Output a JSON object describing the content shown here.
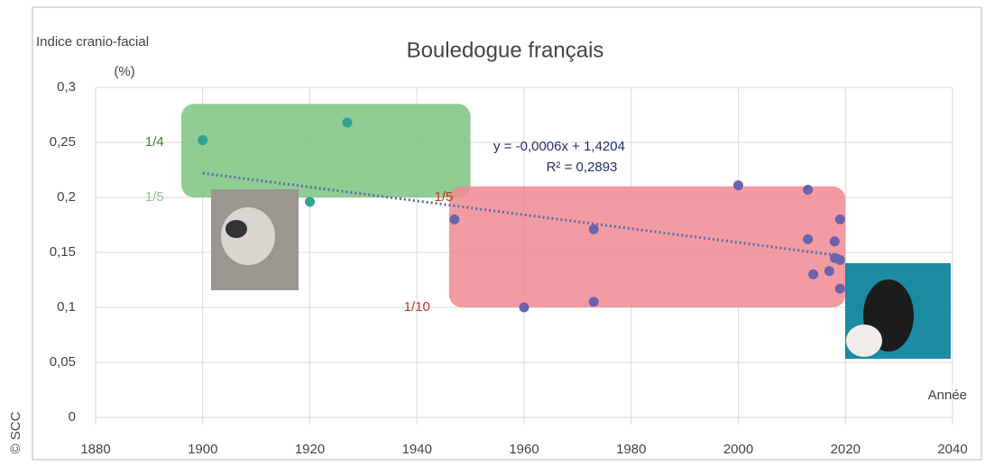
{
  "chart_data": {
    "type": "scatter",
    "title": "Bouledogue français",
    "y_label": "Indice cranio-facial",
    "y_unit": "(%)",
    "x_label": "Année",
    "credit": "© SCC",
    "xlim": [
      1880,
      2040
    ],
    "xticks": [
      1880,
      1900,
      1920,
      1940,
      1960,
      1980,
      2000,
      2020,
      2040
    ],
    "ylim": [
      0,
      0.3
    ],
    "yticks": [
      {
        "value": 0,
        "label": "0"
      },
      {
        "value": 0.05,
        "label": "0,05"
      },
      {
        "value": 0.1,
        "label": "0,1"
      },
      {
        "value": 0.15,
        "label": "0,15"
      },
      {
        "value": 0.2,
        "label": "0,2"
      },
      {
        "value": 0.25,
        "label": "0,25"
      },
      {
        "value": 0.3,
        "label": "0,3"
      }
    ],
    "grid": true,
    "regions": [
      {
        "color": "#7cc47f",
        "xlim": [
          1896,
          1950
        ],
        "ylim": [
          0.2,
          0.285
        ]
      },
      {
        "color": "#f08a93",
        "xlim": [
          1946,
          2020
        ],
        "ylim": [
          0.1,
          0.21
        ]
      }
    ],
    "series": [
      {
        "color": "#2ea58f",
        "x": [
          1900,
          1927,
          1920
        ],
        "values": [
          0.252,
          0.268,
          0.196
        ]
      },
      {
        "color": "#6b63ad",
        "x": [
          1947,
          1960,
          1973,
          1973,
          2000,
          2013,
          2013,
          2014,
          2017,
          2018,
          2018,
          2019,
          2019,
          2019
        ],
        "values": [
          0.18,
          0.1,
          0.171,
          0.105,
          0.211,
          0.207,
          0.162,
          0.13,
          0.133,
          0.16,
          0.145,
          0.18,
          0.143,
          0.117
        ]
      }
    ],
    "trendline": {
      "color": "#5a6fa8",
      "x": [
        1900,
        2019
      ],
      "values": [
        0.222,
        0.147
      ]
    },
    "equation": "y = -0,0006x + 1,4204",
    "r2": "R² = 0,2893",
    "annotations": [
      {
        "text": "1/4",
        "x": 1891,
        "y": 0.25,
        "color": "#3a8a2a"
      },
      {
        "text": "1/5",
        "x": 1891,
        "y": 0.2,
        "color": "#8ec98a"
      },
      {
        "text": "1/5",
        "x": 1945,
        "y": 0.2,
        "color": "#c0392b"
      },
      {
        "text": "1/10",
        "x": 1940,
        "y": 0.1,
        "color": "#c0392b"
      }
    ]
  }
}
